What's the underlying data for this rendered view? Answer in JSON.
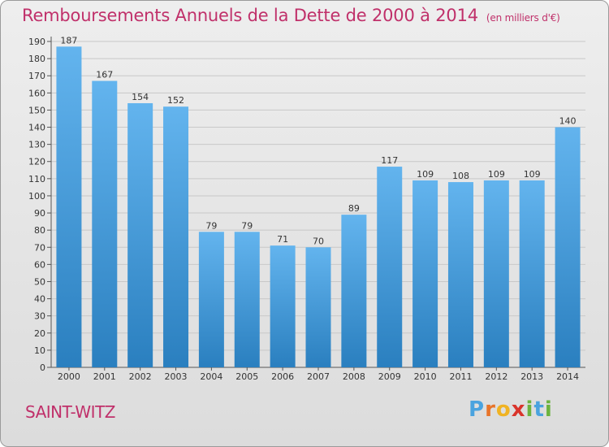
{
  "title": "Remboursements Annuels de la Dette de 2000 à 2014",
  "unit_note": "(en milliers d'€)",
  "commune": "SAINT-WITZ",
  "brand": [
    "P",
    "r",
    "o",
    "x",
    "i",
    "t",
    "i"
  ],
  "brand_colors": [
    "#4aa3df",
    "#e8742a",
    "#f0b323",
    "#d9342b",
    "#6cb33f",
    "#4aa3df",
    "#6cb33f"
  ],
  "colors": {
    "bar_top": "#63b4ee",
    "bar_bottom": "#2a7fbf",
    "title": "#c0306a"
  },
  "chart_data": {
    "type": "bar",
    "title": "Remboursements Annuels de la Dette de 2000 à 2014",
    "subtitle": "(en milliers d'€)",
    "categories": [
      "2000",
      "2001",
      "2002",
      "2003",
      "2004",
      "2005",
      "2006",
      "2007",
      "2008",
      "2009",
      "2010",
      "2011",
      "2012",
      "2013",
      "2014"
    ],
    "values": [
      187,
      167,
      154,
      152,
      79,
      79,
      71,
      70,
      89,
      117,
      109,
      108,
      109,
      109,
      140
    ],
    "xlabel": "",
    "ylabel": "",
    "ylim": [
      0,
      190
    ],
    "yticks": [
      0,
      10,
      20,
      30,
      40,
      50,
      60,
      70,
      80,
      90,
      100,
      110,
      120,
      130,
      140,
      150,
      160,
      170,
      180,
      190
    ],
    "grid": true,
    "legend": "none"
  }
}
